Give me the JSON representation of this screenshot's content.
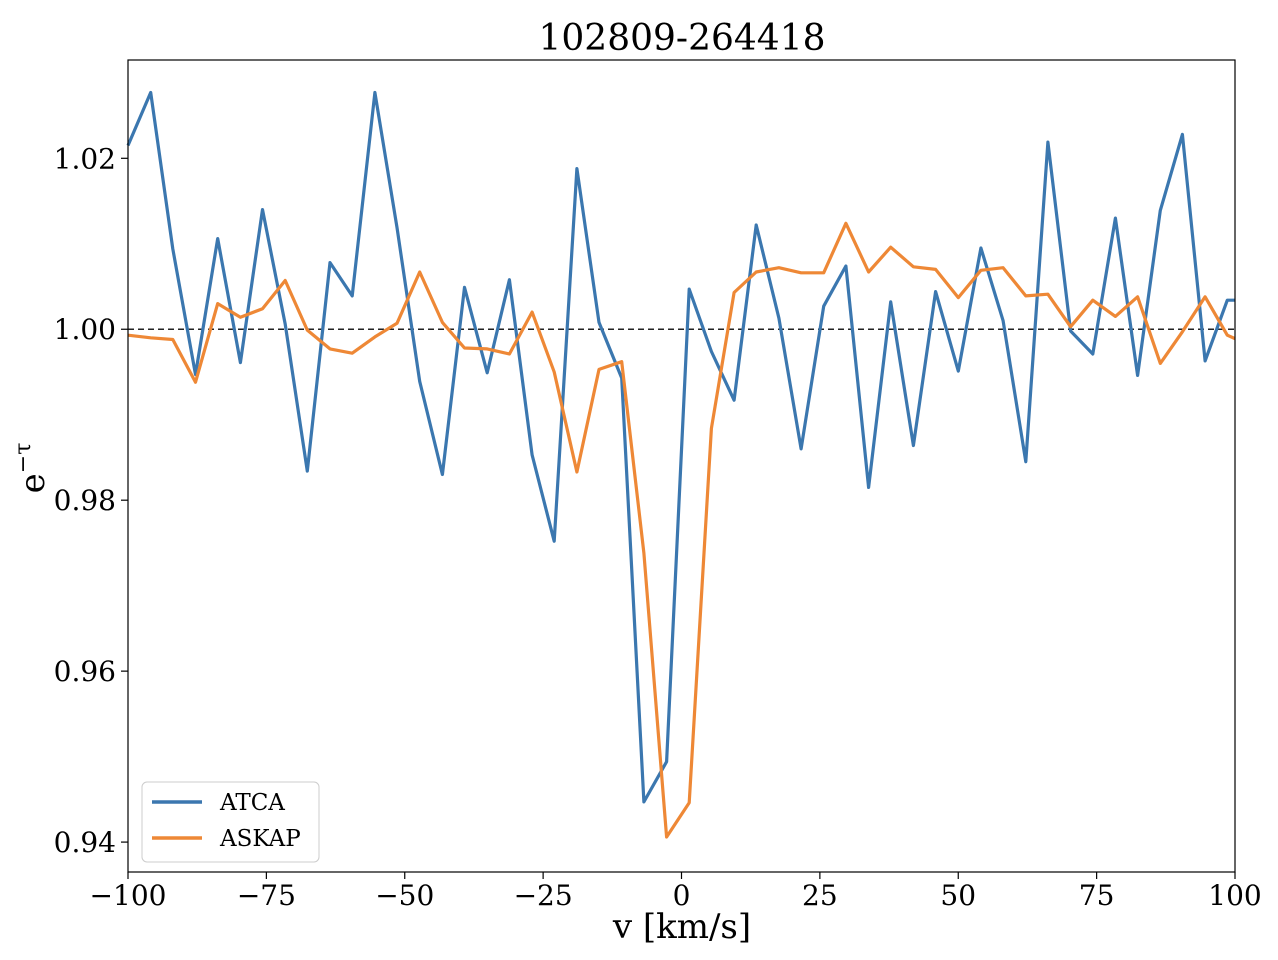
{
  "chart_data": {
    "type": "line",
    "title": "102809-264418",
    "xlabel": "v [km/s]",
    "ylabel_base": "e",
    "ylabel_sup": "−τ",
    "xlim": [
      -100,
      100
    ],
    "ylim": [
      0.9365,
      1.0315
    ],
    "xticks": [
      -100,
      -75,
      -50,
      -25,
      0,
      25,
      50,
      75,
      100
    ],
    "xtick_labels": [
      "−100",
      "−75",
      "−50",
      "−25",
      "0",
      "25",
      "50",
      "75",
      "100"
    ],
    "yticks": [
      0.94,
      0.96,
      0.98,
      1.0,
      1.02
    ],
    "ytick_labels": [
      "0.94",
      "0.96",
      "0.98",
      "1.00",
      "1.02"
    ],
    "reference_line": 1.0,
    "legend_position": "lower-left",
    "series": [
      {
        "name": "ATCA",
        "color": "#3b77af",
        "x": [
          -100,
          -95.9,
          -91.9,
          -87.8,
          -83.8,
          -79.7,
          -75.7,
          -71.6,
          -67.6,
          -63.5,
          -59.5,
          -55.4,
          -51.4,
          -47.3,
          -43.2,
          -39.2,
          -35.1,
          -31.1,
          -27.0,
          -23.0,
          -18.9,
          -14.9,
          -10.8,
          -6.8,
          -2.7,
          1.4,
          5.4,
          9.5,
          13.5,
          17.6,
          21.6,
          25.7,
          29.7,
          33.8,
          37.8,
          41.9,
          45.9,
          50.0,
          54.1,
          58.1,
          62.2,
          66.2,
          70.3,
          74.3,
          78.4,
          82.4,
          86.5,
          90.5,
          94.6,
          98.6,
          100
        ],
        "y": [
          1.0215,
          1.0277,
          1.0094,
          0.9947,
          1.0106,
          0.9961,
          1.014,
          1.0006,
          0.9834,
          1.0078,
          1.0039,
          1.0277,
          1.0119,
          0.9939,
          0.983,
          1.0049,
          0.9949,
          1.0058,
          0.9853,
          0.9752,
          1.0188,
          1.0008,
          0.9943,
          0.9447,
          0.9494,
          1.0047,
          0.9974,
          0.9917,
          1.0122,
          1.0013,
          0.986,
          1.0027,
          1.0074,
          0.9815,
          1.0032,
          0.9864,
          1.0044,
          0.9951,
          1.0095,
          1.001,
          0.9845,
          1.0219,
          0.9998,
          0.9971,
          1.013,
          0.9946,
          1.0139,
          1.0228,
          0.9963,
          1.0034,
          1.0034
        ]
      },
      {
        "name": "ASKAP",
        "color": "#ee8836",
        "x": [
          -100,
          -95.9,
          -91.9,
          -87.8,
          -83.8,
          -79.7,
          -75.7,
          -71.6,
          -67.6,
          -63.5,
          -59.5,
          -55.4,
          -51.4,
          -47.3,
          -43.2,
          -39.2,
          -35.1,
          -31.1,
          -27.0,
          -23.0,
          -18.9,
          -14.9,
          -10.8,
          -6.8,
          -2.7,
          1.4,
          5.4,
          9.5,
          13.5,
          17.6,
          21.6,
          25.7,
          29.7,
          33.8,
          37.8,
          41.9,
          45.9,
          50.0,
          54.1,
          58.1,
          62.2,
          66.2,
          70.3,
          74.3,
          78.4,
          82.4,
          86.5,
          90.5,
          94.6,
          98.6,
          100
        ],
        "y": [
          0.9993,
          0.999,
          0.9988,
          0.9938,
          1.003,
          1.0014,
          1.0024,
          1.0057,
          0.9999,
          0.9977,
          0.9972,
          0.9991,
          1.0007,
          1.0067,
          1.0008,
          0.9978,
          0.9977,
          0.9971,
          1.002,
          0.995,
          0.9833,
          0.9953,
          0.9962,
          0.9738,
          0.9406,
          0.9446,
          0.9884,
          1.0043,
          1.0067,
          1.0072,
          1.0066,
          1.0066,
          1.0124,
          1.0067,
          1.0096,
          1.0073,
          1.007,
          1.0037,
          1.0069,
          1.0072,
          1.0039,
          1.0041,
          1.0003,
          1.0034,
          1.0015,
          1.0038,
          0.996,
          0.9997,
          1.0038,
          0.9993,
          0.9989
        ]
      }
    ]
  }
}
